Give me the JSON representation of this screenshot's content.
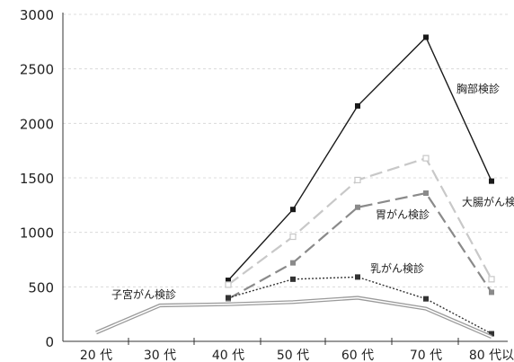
{
  "chart_data": {
    "type": "line",
    "title": "",
    "xlabel": "",
    "ylabel": "",
    "ylim": [
      0,
      3000
    ],
    "yticks": [
      0,
      500,
      1000,
      1500,
      2000,
      2500,
      3000
    ],
    "categories": [
      "20 代",
      "30 代",
      "40 代",
      "50 代",
      "60 代",
      "70 代",
      "80 代以"
    ],
    "grid": "horizontal dashed",
    "series": [
      {
        "name": "胸部検診",
        "color": "#1a1a1a",
        "dash": "solid",
        "marker": "filled-square",
        "values": [
          null,
          null,
          560,
          1210,
          2160,
          2790,
          1470
        ]
      },
      {
        "name": "大腸がん検",
        "color": "#c8c8c8",
        "dash": "long-dash",
        "marker": "open-square",
        "values": [
          null,
          null,
          520,
          960,
          1480,
          1680,
          570
        ]
      },
      {
        "name": "胃がん検診",
        "color": "#8a8a8a",
        "dash": "long-dash",
        "marker": "filled-square",
        "values": [
          null,
          null,
          390,
          720,
          1230,
          1360,
          450
        ]
      },
      {
        "name": "乳がん検診",
        "color": "#333333",
        "dash": "dotted",
        "marker": "filled-square",
        "values": [
          null,
          null,
          400,
          570,
          590,
          390,
          70
        ]
      },
      {
        "name": "子宮がん検診",
        "color": "#9a9a9a",
        "dash": "double",
        "marker": "none",
        "values": [
          80,
          330,
          340,
          360,
          400,
          300,
          40
        ]
      }
    ]
  }
}
